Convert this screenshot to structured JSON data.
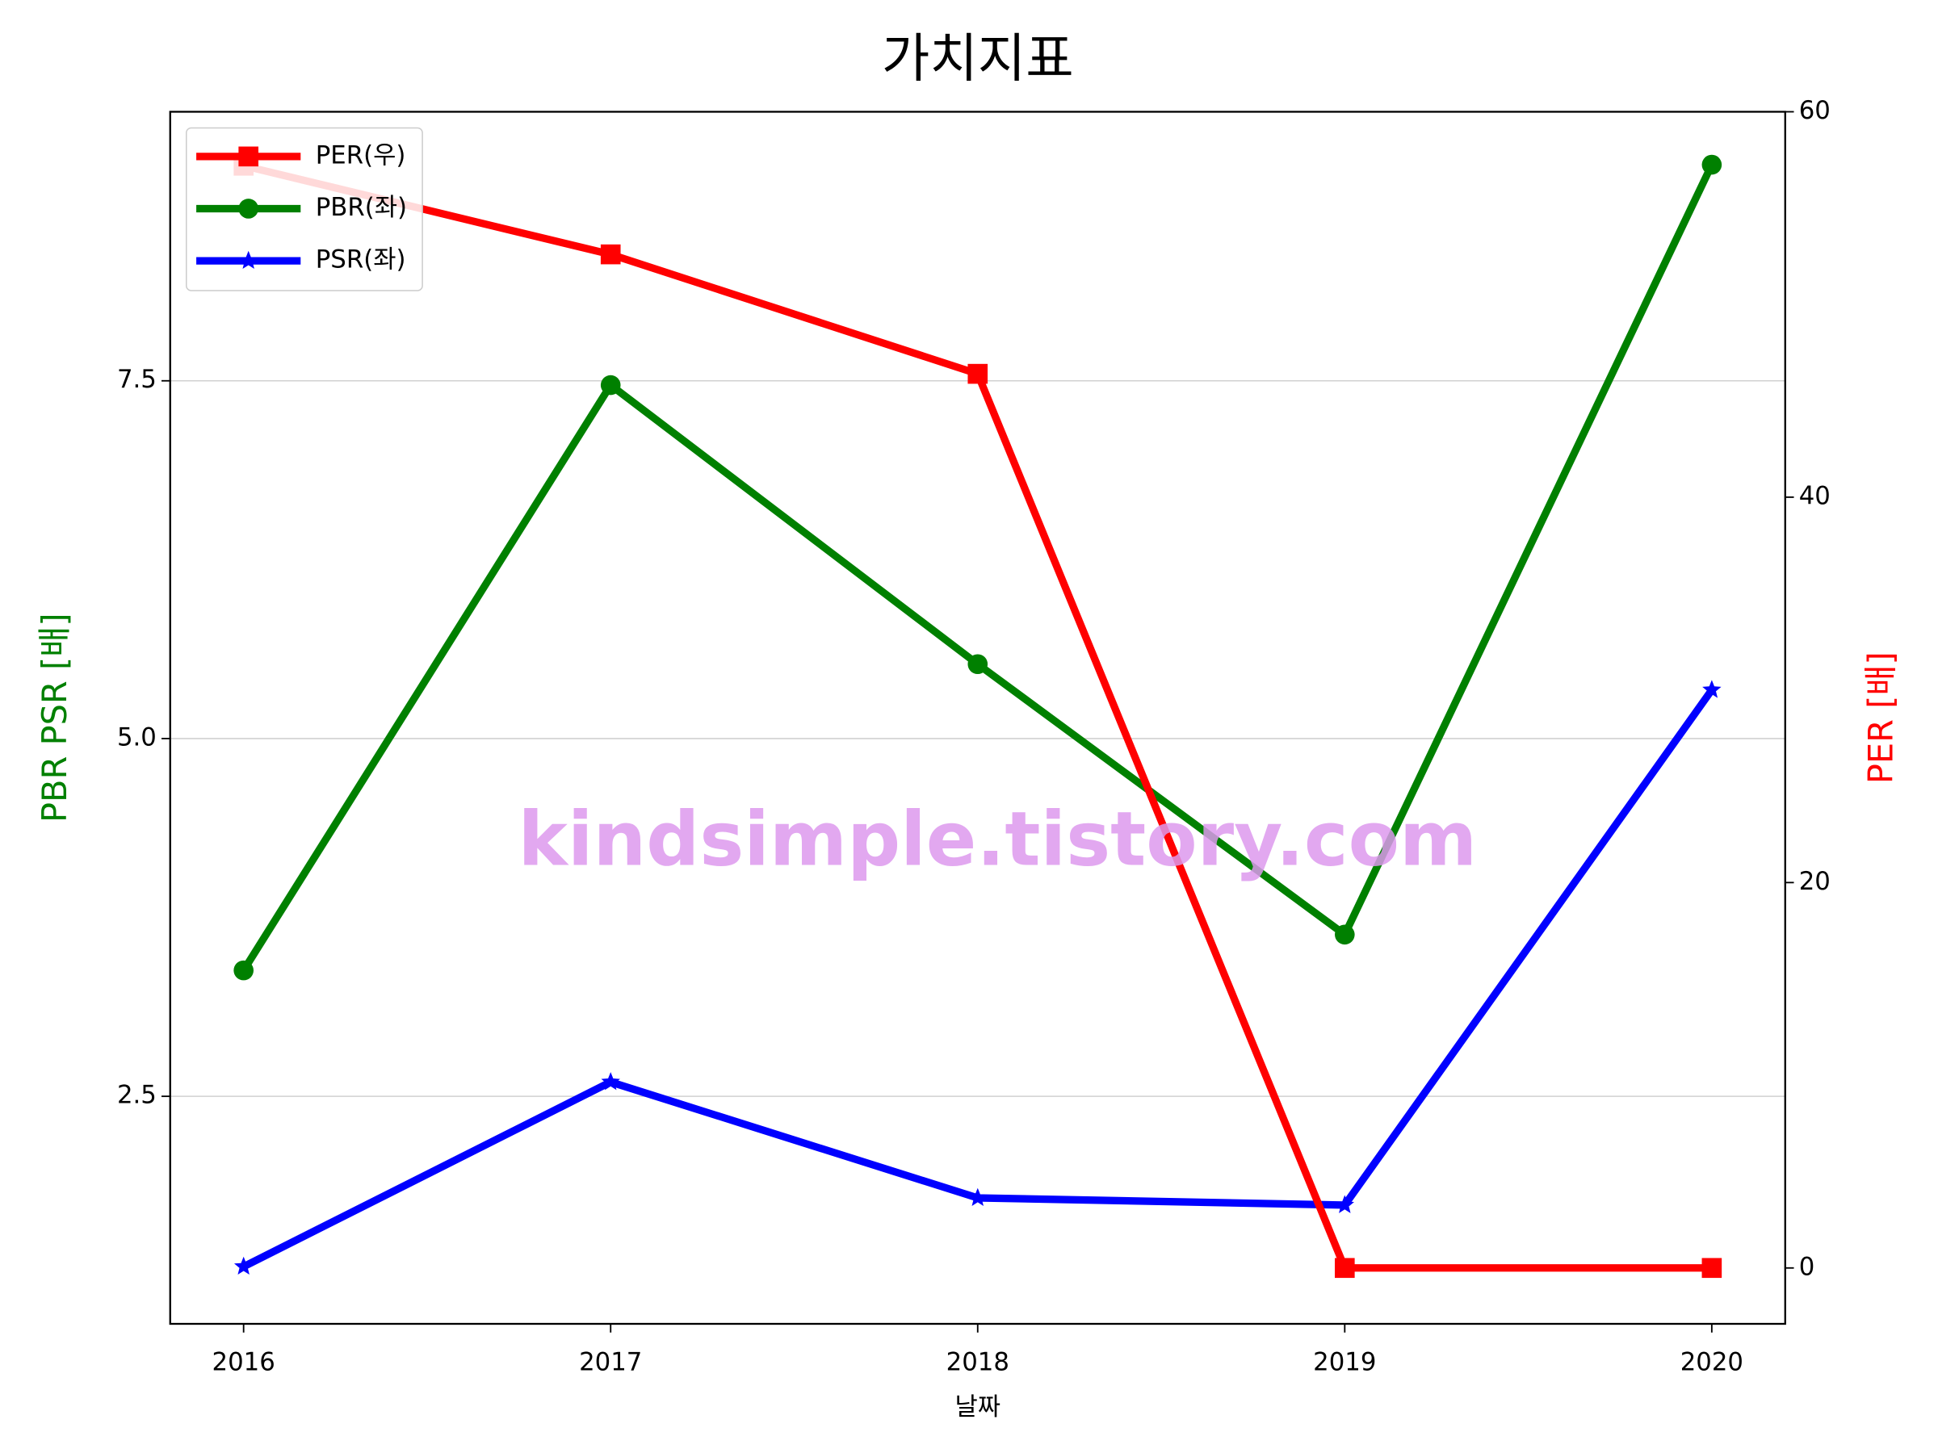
{
  "chart_data": {
    "type": "line",
    "title": "가치지표",
    "xlabel": "날짜",
    "ylabel": "PBR PSR [배]",
    "y2label": "PER [배]",
    "ylabel_color": "#008000",
    "y2label_color": "#ff0000",
    "watermark": "kindsimple.tistory.com",
    "x": [
      2016,
      2017,
      2018,
      2019,
      2020
    ],
    "xlim": [
      2015.8,
      2020.2
    ],
    "xticks": [
      2016,
      2017,
      2018,
      2019,
      2020
    ],
    "ylim": [
      0.91,
      9.38
    ],
    "yticks": [
      {
        "value": 2.5,
        "label": "2.5"
      },
      {
        "value": 5,
        "label": "5.0"
      },
      {
        "value": 7.5,
        "label": "7.5"
      }
    ],
    "y2lim": [
      -2.9,
      60
    ],
    "y2ticks": [
      0,
      20,
      40,
      60
    ],
    "grid": true,
    "legend": "upper left",
    "series": [
      {
        "name": "PER(우)",
        "color": "#ff0000",
        "marker": "square",
        "axis": "y2",
        "values": [
          57.2,
          52.6,
          46.4,
          0,
          0
        ]
      },
      {
        "name": "PBR(좌)",
        "color": "#008000",
        "marker": "circle",
        "values": [
          3.38,
          7.47,
          5.52,
          3.63,
          9.01
        ]
      },
      {
        "name": "PSR(좌)",
        "color": "#0000ff",
        "marker": "star",
        "values": [
          1.31,
          2.6,
          1.79,
          1.74,
          5.34
        ]
      }
    ]
  }
}
